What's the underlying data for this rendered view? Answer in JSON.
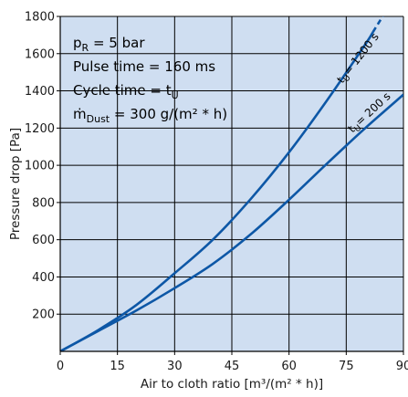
{
  "chart_data": {
    "type": "line",
    "xlabel": "Air to cloth ratio [m³/(m² * h)]",
    "ylabel": "Pressure drop [Pa]",
    "xlim": [
      0,
      90
    ],
    "ylim": [
      0,
      1800
    ],
    "x_ticks": [
      "0",
      "15",
      "30",
      "45",
      "60",
      "75",
      "90"
    ],
    "y_ticks": [
      "200",
      "400",
      "600",
      "800",
      "1000",
      "1200",
      "1400",
      "1600",
      "1800"
    ],
    "grid": true,
    "background_color": "#cfdef1",
    "line_color": "#0d57a6",
    "notes": {
      "pr_main": "p",
      "pr_sub": "R",
      "pr_rest": " = 5 bar",
      "pulse": "Pulse time = 160 ms",
      "cycle_main": "Cycle time = t",
      "cycle_sub": "U",
      "dust_main": "ṁ",
      "dust_sub": "Dust",
      "dust_rest": " = 300 g/(m² * h)"
    },
    "series": [
      {
        "label_main": "t",
        "label_sub": "U",
        "label_rest": "= 1200 s",
        "x": [
          0,
          10,
          20,
          30,
          40,
          50,
          60,
          70,
          80,
          90
        ],
        "y": [
          0,
          115,
          250,
          420,
          600,
          820,
          1070,
          1350,
          1650,
          1980
        ],
        "dashed_from_x": 82
      },
      {
        "label_main": "t",
        "label_sub": "U",
        "label_rest": "= 200 s",
        "x": [
          0,
          10,
          20,
          30,
          40,
          50,
          60,
          70,
          80,
          90
        ],
        "y": [
          0,
          110,
          220,
          340,
          470,
          630,
          815,
          1010,
          1200,
          1380
        ]
      }
    ]
  }
}
